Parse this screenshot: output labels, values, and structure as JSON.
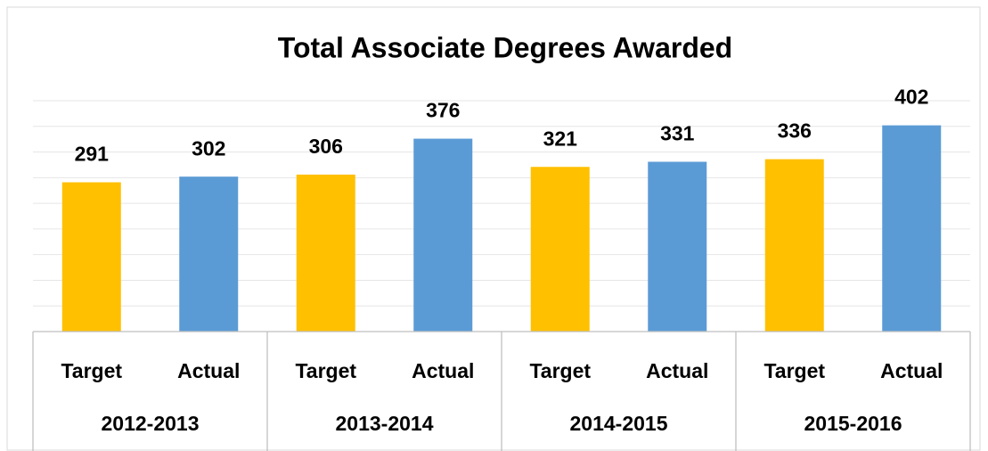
{
  "chart_data": {
    "type": "bar",
    "title": "Total Associate Degrees Awarded",
    "categories": [
      "2012-2013",
      "2013-2014",
      "2014-2015",
      "2015-2016"
    ],
    "series": [
      {
        "name": "Target",
        "color": "#FFC000",
        "values": [
          291,
          306,
          321,
          336
        ]
      },
      {
        "name": "Actual",
        "color": "#5B9BD5",
        "values": [
          302,
          376,
          331,
          402
        ]
      }
    ],
    "ylim": [
      0,
      450
    ],
    "yticks": [
      0,
      50,
      100,
      150,
      200,
      250,
      300,
      350,
      400,
      450
    ],
    "grid": true
  }
}
